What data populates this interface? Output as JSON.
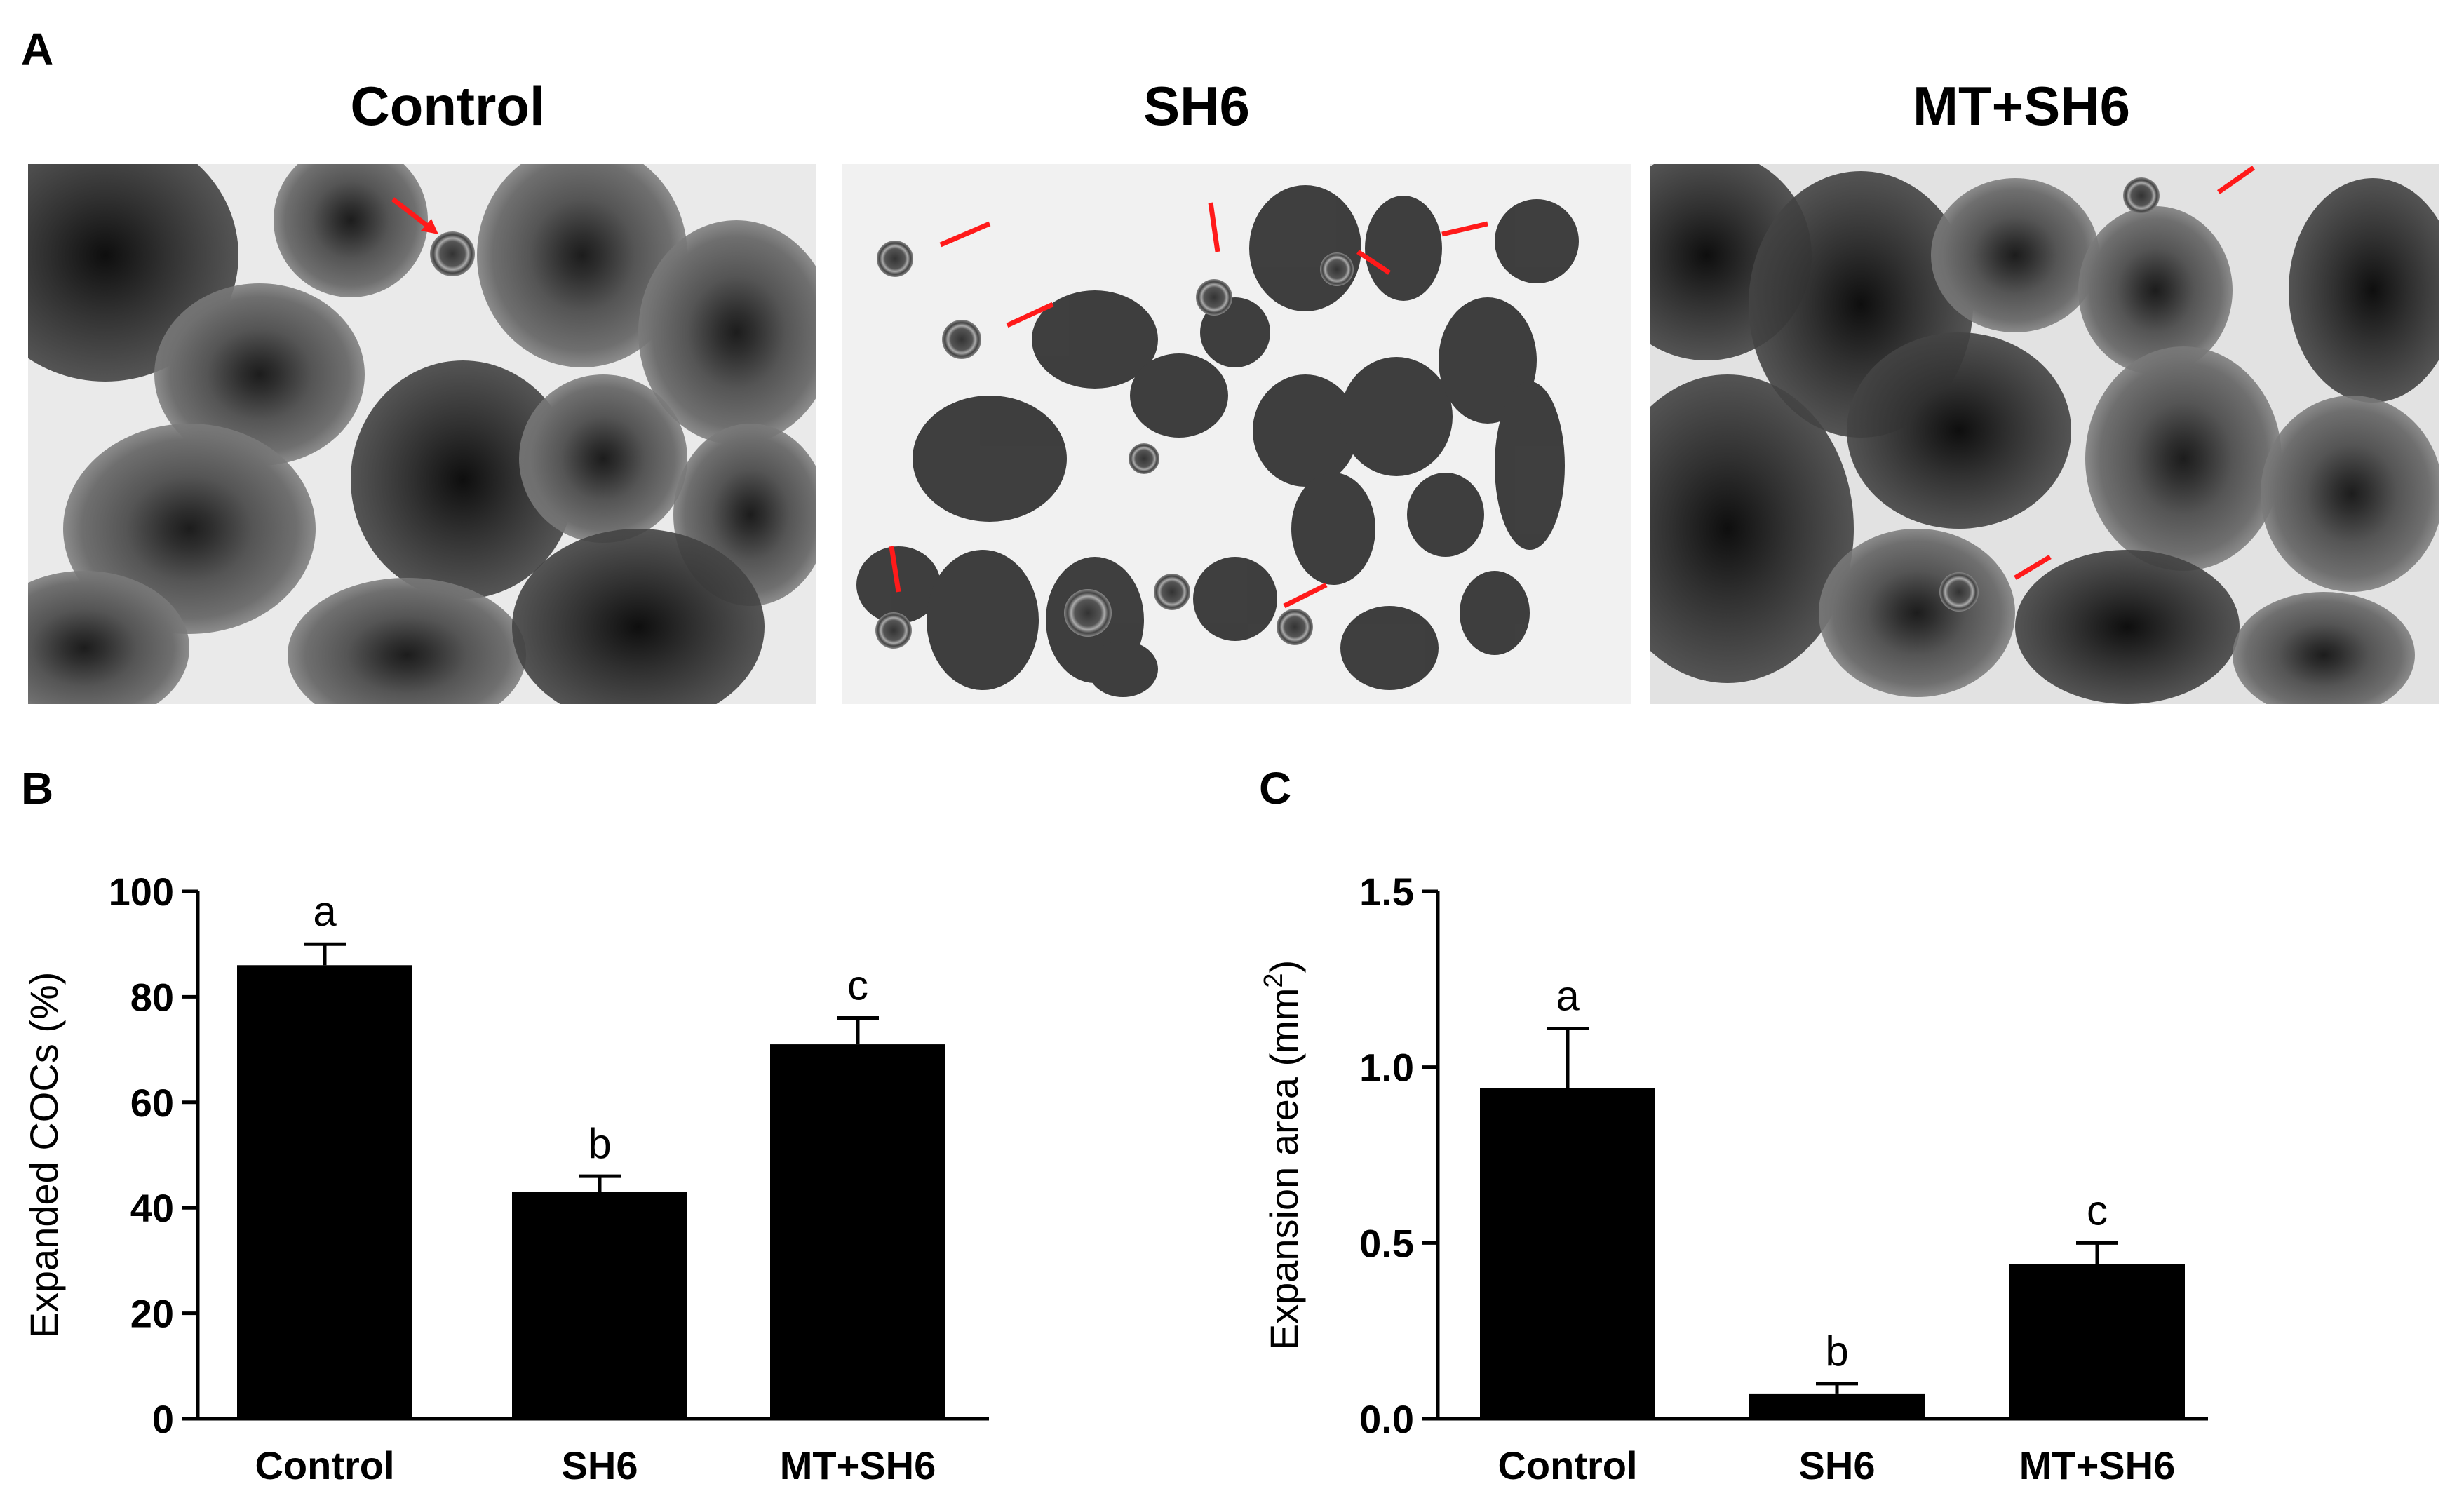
{
  "panels": {
    "a_label": "A",
    "b_label": "B",
    "c_label": "C"
  },
  "images": [
    {
      "title": "Control",
      "arrow_color": "#ff1a1a"
    },
    {
      "title": "SH6",
      "arrow_color": "#ff1a1a"
    },
    {
      "title": "MT+SH6",
      "arrow_color": "#ff1a1a"
    }
  ],
  "chart_data": [
    {
      "type": "bar",
      "categories": [
        "Control",
        "SH6",
        "MT+SH6"
      ],
      "values": [
        86,
        43,
        71
      ],
      "errors": [
        4,
        3,
        5
      ],
      "significance": [
        "a",
        "b",
        "c"
      ],
      "ylabel": "Expanded COCs (%)",
      "ylim": [
        0,
        100
      ],
      "yticks": [
        0,
        20,
        40,
        60,
        80,
        100
      ],
      "ytick_labels": [
        "0",
        "20",
        "40",
        "60",
        "80",
        "100"
      ],
      "bar_color": "#000000"
    },
    {
      "type": "bar",
      "categories": [
        "Control",
        "SH6",
        "MT+SH6"
      ],
      "values": [
        0.94,
        0.07,
        0.44
      ],
      "errors": [
        0.17,
        0.03,
        0.06
      ],
      "significance": [
        "a",
        "b",
        "c"
      ],
      "ylabel": "Expansion area (mm",
      "ylabel_superscript": "2",
      "ylabel_suffix": ")",
      "ylim": [
        0,
        1.5
      ],
      "yticks": [
        0,
        0.5,
        1.0,
        1.5
      ],
      "ytick_labels": [
        "0.0",
        "0.5",
        "1.0",
        "1.5"
      ],
      "bar_color": "#000000"
    }
  ]
}
